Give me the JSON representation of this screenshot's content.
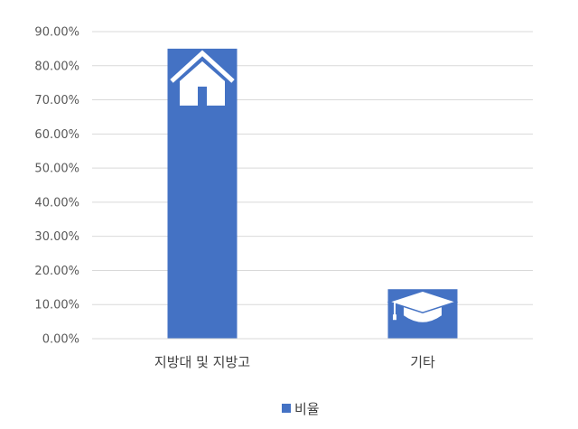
{
  "chart_data": {
    "type": "bar",
    "categories": [
      "지방대 및 지방고",
      "기타"
    ],
    "series": [
      {
        "name": "비율",
        "values": [
          85.0,
          14.5
        ]
      }
    ],
    "ylim": [
      0,
      90
    ],
    "yticks": [
      "0.00%",
      "10.00%",
      "20.00%",
      "30.00%",
      "40.00%",
      "50.00%",
      "60.00%",
      "70.00%",
      "80.00%",
      "90.00%"
    ],
    "grid": true,
    "legend": "bottom",
    "colors": {
      "bar": "#4472C4",
      "grid": "#D9D9D9"
    },
    "bar_icons": [
      "house-icon",
      "graduation-cap-icon"
    ]
  }
}
